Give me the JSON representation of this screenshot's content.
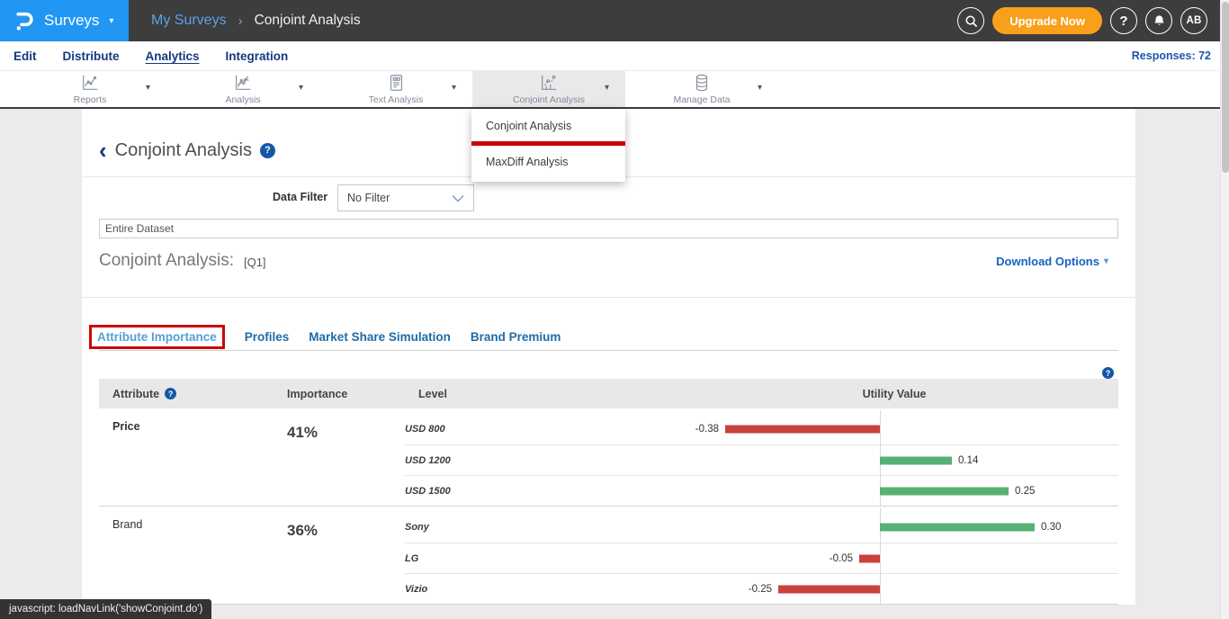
{
  "icons": {
    "caret": "▾",
    "chevron_right": "›",
    "back": "‹",
    "question": "?"
  },
  "topbar": {
    "logo_label": "Surveys",
    "breadcrumb": {
      "parent": "My Surveys",
      "current": "Conjoint Analysis"
    },
    "upgrade_label": "Upgrade Now",
    "avatar_initials": "AB"
  },
  "nav": {
    "items": [
      "Edit",
      "Distribute",
      "Analytics",
      "Integration"
    ],
    "active": "Analytics",
    "responses_label": "Responses: 72"
  },
  "toolbar": {
    "items": [
      {
        "label": "Reports",
        "icon": "line-chart-icon"
      },
      {
        "label": "Analysis",
        "icon": "line-chart-icon"
      },
      {
        "label": "Text Analysis",
        "icon": "document-icon"
      },
      {
        "label": "Conjoint Analysis",
        "icon": "conjoint-chart-icon"
      },
      {
        "label": "Manage Data",
        "icon": "database-icon"
      }
    ],
    "active": "Conjoint Analysis"
  },
  "dropdown": {
    "items": [
      "Conjoint Analysis",
      "MaxDiff Analysis"
    ]
  },
  "page": {
    "title": "Conjoint Analysis",
    "data_filter_label": "Data Filter",
    "data_filter_value": "No Filter",
    "dataset_label": "Entire Dataset",
    "section_title": "Conjoint Analysis:",
    "section_question": "[Q1]",
    "download_label": "Download Options",
    "tabs": [
      "Attribute Importance",
      "Profiles",
      "Market Share Simulation",
      "Brand Premium"
    ],
    "active_tab": "Attribute Importance"
  },
  "table": {
    "headers": [
      "Attribute",
      "Importance",
      "Level",
      "Utility Value"
    ]
  },
  "chart_data": {
    "type": "bar",
    "title": "Conjoint Analysis Utility Values",
    "orientation": "horizontal",
    "xlim": [
      -0.4,
      0.35
    ],
    "axis_center": 0,
    "groups": [
      {
        "attribute": "Price",
        "importance": "41%",
        "levels": [
          {
            "label": "USD 800",
            "value": -0.38
          },
          {
            "label": "USD 1200",
            "value": 0.14
          },
          {
            "label": "USD 1500",
            "value": 0.25
          }
        ]
      },
      {
        "attribute": "Brand",
        "importance": "36%",
        "levels": [
          {
            "label": "Sony",
            "value": 0.3
          },
          {
            "label": "LG",
            "value": -0.05
          },
          {
            "label": "Vizio",
            "value": -0.25
          }
        ]
      }
    ],
    "colors": {
      "positive": "#58b074",
      "negative": "#c9413c"
    }
  },
  "statusbar": {
    "text": "javascript: loadNavLink('showConjoint.do')"
  }
}
